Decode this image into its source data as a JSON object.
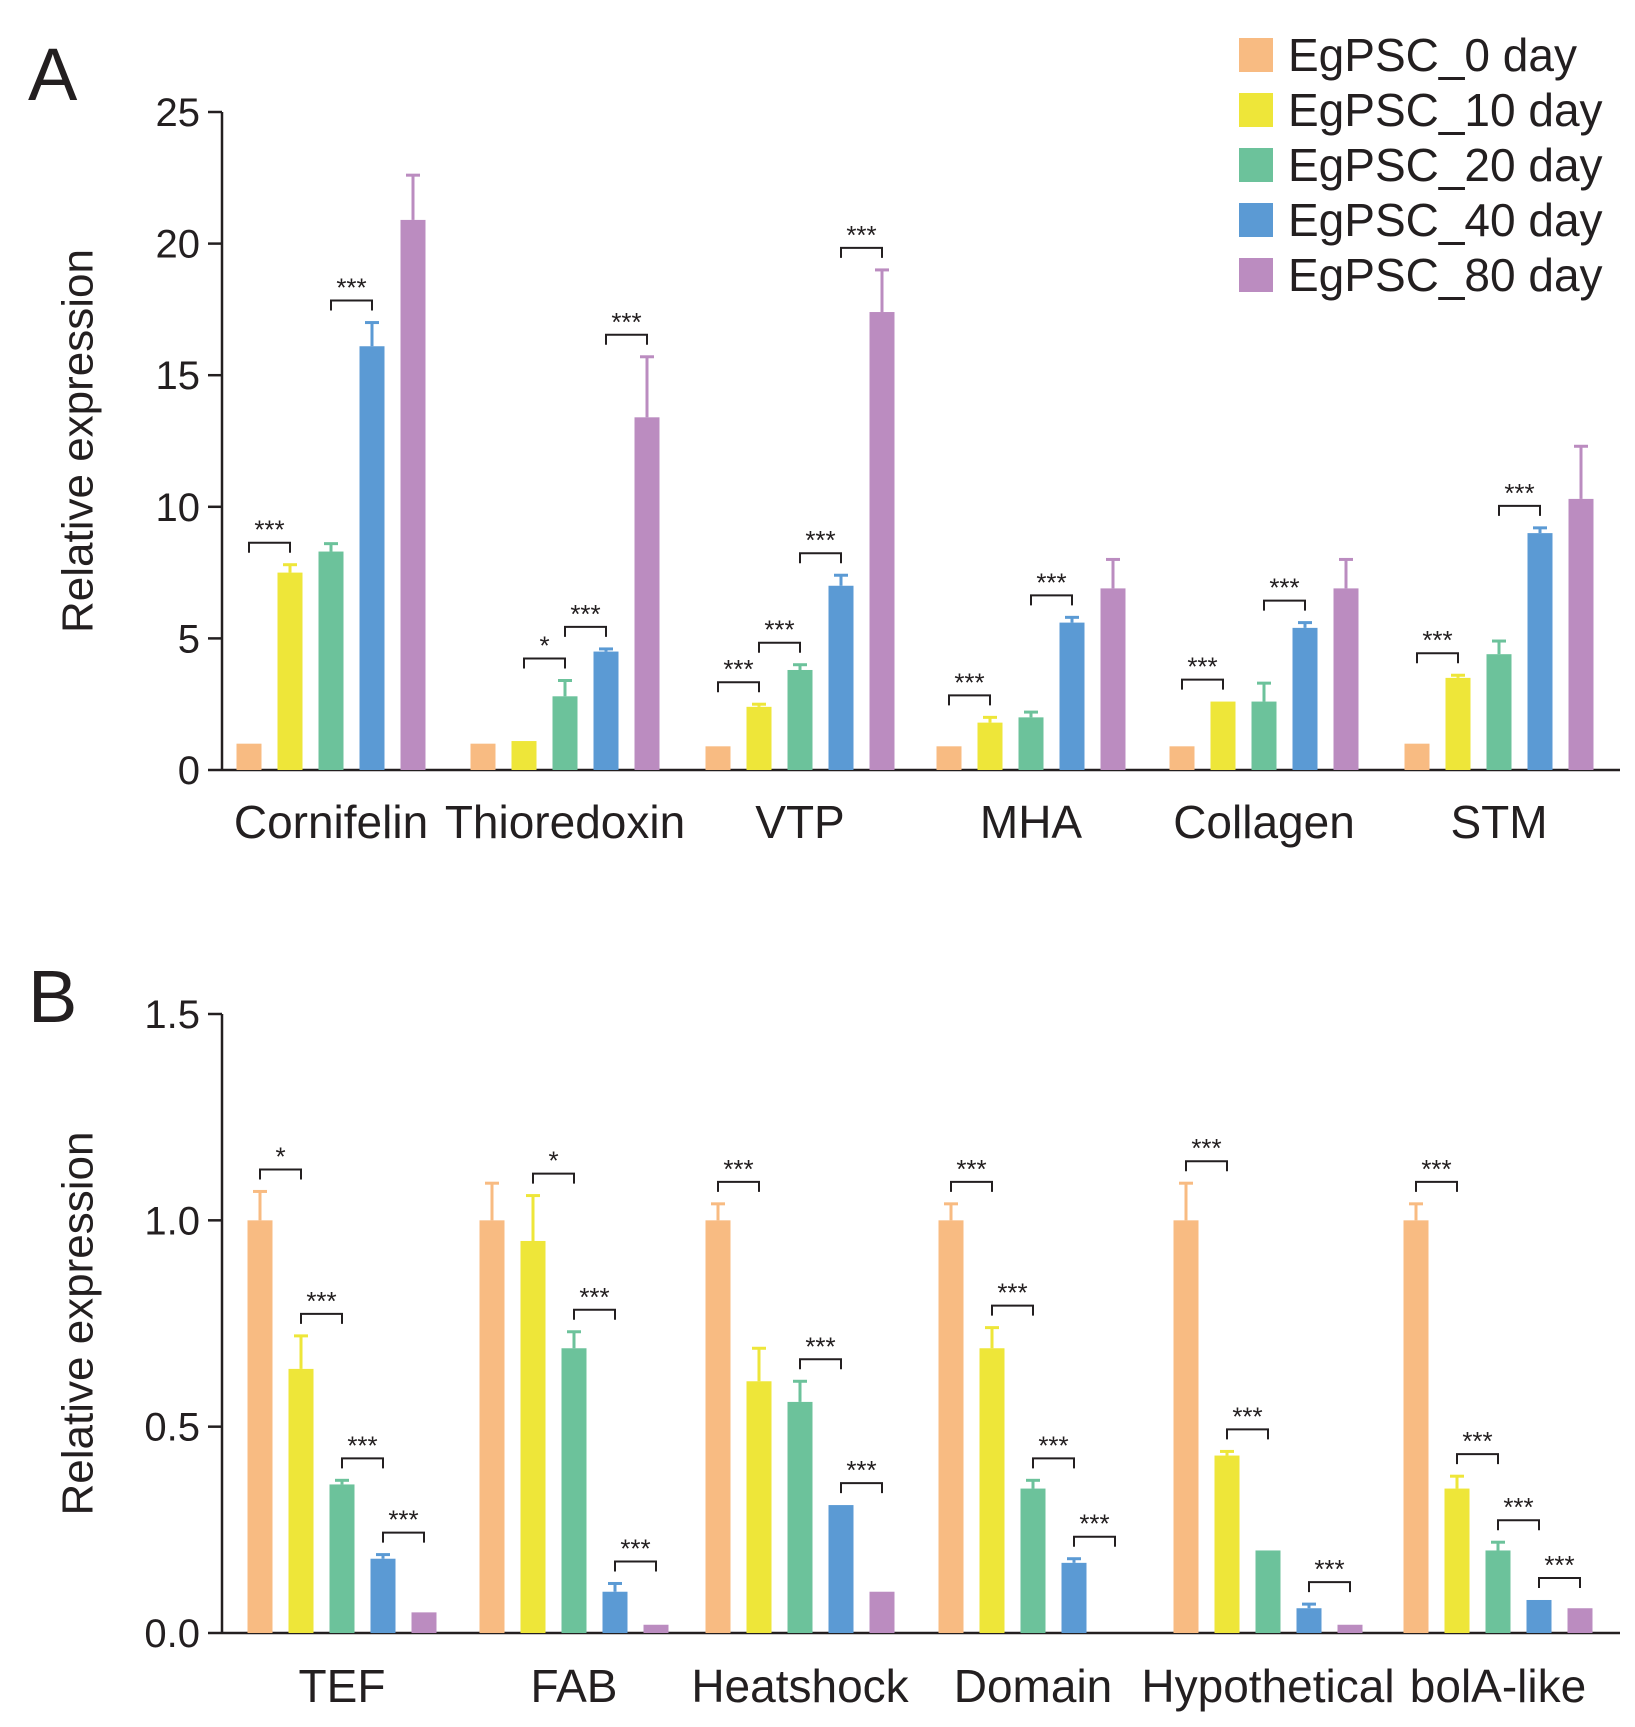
{
  "legend": {
    "items": [
      {
        "label": "EgPSC_0 day",
        "color": "#f8bb82"
      },
      {
        "label": "EgPSC_10 day",
        "color": "#eee639"
      },
      {
        "label": "EgPSC_20 day",
        "color": "#6cc29b"
      },
      {
        "label": "EgPSC_40 day",
        "color": "#5b9ad4"
      },
      {
        "label": "EgPSC_80 day",
        "color": "#bb8cc0"
      }
    ]
  },
  "chart_data": [
    {
      "panel": "A",
      "type": "bar",
      "ylabel": "Relative expression",
      "ylim": [
        0,
        25
      ],
      "yticks": [
        "0",
        "5",
        "10",
        "15",
        "20",
        "25"
      ],
      "categories": [
        "Cornifelin",
        "Thioredoxin",
        "VTP",
        "MHA",
        "Collagen",
        "STM"
      ],
      "series": [
        {
          "name": "EgPSC_0 day",
          "values": [
            1.0,
            1.0,
            0.9,
            0.9,
            0.9,
            1.0
          ],
          "errors": [
            0,
            0,
            0,
            0,
            0,
            0
          ]
        },
        {
          "name": "EgPSC_10 day",
          "values": [
            7.5,
            1.1,
            2.4,
            1.8,
            2.6,
            3.5
          ],
          "errors": [
            0.3,
            0,
            0.1,
            0.2,
            0,
            0.1
          ]
        },
        {
          "name": "EgPSC_20 day",
          "values": [
            8.3,
            2.8,
            3.8,
            2.0,
            2.6,
            4.4
          ],
          "errors": [
            0.3,
            0.6,
            0.2,
            0.2,
            0.7,
            0.5
          ]
        },
        {
          "name": "EgPSC_40 day",
          "values": [
            16.1,
            4.5,
            7.0,
            5.6,
            5.4,
            9.0
          ],
          "errors": [
            0.9,
            0.1,
            0.4,
            0.2,
            0.2,
            0.2
          ]
        },
        {
          "name": "EgPSC_80 day",
          "values": [
            20.9,
            13.4,
            17.4,
            6.9,
            6.9,
            10.3
          ],
          "errors": [
            1.7,
            2.3,
            1.6,
            1.1,
            1.1,
            2.0
          ]
        }
      ],
      "annotations": [
        {
          "category": 0,
          "from": 0,
          "to": 1,
          "text": "***"
        },
        {
          "category": 0,
          "from": 2,
          "to": 3,
          "text": "***"
        },
        {
          "category": 1,
          "from": 1,
          "to": 2,
          "text": "*"
        },
        {
          "category": 1,
          "from": 2,
          "to": 3,
          "text": "***"
        },
        {
          "category": 1,
          "from": 3,
          "to": 4,
          "text": "***"
        },
        {
          "category": 2,
          "from": 0,
          "to": 1,
          "text": "***"
        },
        {
          "category": 2,
          "from": 1,
          "to": 2,
          "text": "***"
        },
        {
          "category": 2,
          "from": 2,
          "to": 3,
          "text": "***"
        },
        {
          "category": 2,
          "from": 3,
          "to": 4,
          "text": "***"
        },
        {
          "category": 3,
          "from": 0,
          "to": 1,
          "text": "***"
        },
        {
          "category": 3,
          "from": 2,
          "to": 3,
          "text": "***"
        },
        {
          "category": 4,
          "from": 0,
          "to": 1,
          "text": "***"
        },
        {
          "category": 4,
          "from": 2,
          "to": 3,
          "text": "***"
        },
        {
          "category": 5,
          "from": 0,
          "to": 1,
          "text": "***"
        },
        {
          "category": 5,
          "from": 2,
          "to": 3,
          "text": "***"
        }
      ]
    },
    {
      "panel": "B",
      "type": "bar",
      "ylabel": "Relative expression",
      "ylim": [
        0,
        1.5
      ],
      "yticks": [
        "0.0",
        "0.5",
        "1.0",
        "1.5"
      ],
      "categories": [
        "TEF",
        "FAB",
        "Heatshock",
        "Domain",
        "Hypothetical",
        "bolA-like"
      ],
      "series": [
        {
          "name": "EgPSC_0 day",
          "values": [
            1.0,
            1.0,
            1.0,
            1.0,
            1.0,
            1.0
          ],
          "errors": [
            0.07,
            0.09,
            0.04,
            0.04,
            0.09,
            0.04
          ]
        },
        {
          "name": "EgPSC_10 day",
          "values": [
            0.64,
            0.95,
            0.61,
            0.69,
            0.43,
            0.35
          ],
          "errors": [
            0.08,
            0.11,
            0.08,
            0.05,
            0.01,
            0.03
          ]
        },
        {
          "name": "EgPSC_20 day",
          "values": [
            0.36,
            0.69,
            0.56,
            0.35,
            0.2,
            0.2
          ],
          "errors": [
            0.01,
            0.04,
            0.05,
            0.02,
            0.0,
            0.02
          ]
        },
        {
          "name": "EgPSC_40 day",
          "values": [
            0.18,
            0.1,
            0.31,
            0.17,
            0.06,
            0.08
          ],
          "errors": [
            0.01,
            0.02,
            0.0,
            0.01,
            0.01,
            0.0
          ]
        },
        {
          "name": "EgPSC_80 day",
          "values": [
            0.05,
            0.02,
            0.1,
            0.0,
            0.02,
            0.06
          ],
          "errors": [
            0,
            0,
            0,
            0,
            0,
            0
          ]
        }
      ],
      "annotations": [
        {
          "category": 0,
          "from": 0,
          "to": 1,
          "text": "*"
        },
        {
          "category": 0,
          "from": 1,
          "to": 2,
          "text": "***"
        },
        {
          "category": 0,
          "from": 2,
          "to": 3,
          "text": "***"
        },
        {
          "category": 0,
          "from": 3,
          "to": 4,
          "text": "***"
        },
        {
          "category": 1,
          "from": 1,
          "to": 2,
          "text": "*"
        },
        {
          "category": 1,
          "from": 2,
          "to": 3,
          "text": "***"
        },
        {
          "category": 1,
          "from": 3,
          "to": 4,
          "text": "***"
        },
        {
          "category": 2,
          "from": 0,
          "to": 1,
          "text": "***"
        },
        {
          "category": 2,
          "from": 2,
          "to": 3,
          "text": "***"
        },
        {
          "category": 2,
          "from": 3,
          "to": 4,
          "text": "***"
        },
        {
          "category": 3,
          "from": 0,
          "to": 1,
          "text": "***"
        },
        {
          "category": 3,
          "from": 1,
          "to": 2,
          "text": "***"
        },
        {
          "category": 3,
          "from": 2,
          "to": 3,
          "text": "***"
        },
        {
          "category": 3,
          "from": 3,
          "to": 4,
          "text": "***"
        },
        {
          "category": 4,
          "from": 0,
          "to": 1,
          "text": "***"
        },
        {
          "category": 4,
          "from": 1,
          "to": 2,
          "text": "***"
        },
        {
          "category": 4,
          "from": 3,
          "to": 4,
          "text": "***"
        },
        {
          "category": 5,
          "from": 0,
          "to": 1,
          "text": "***"
        },
        {
          "category": 5,
          "from": 1,
          "to": 2,
          "text": "***"
        },
        {
          "category": 5,
          "from": 2,
          "to": 3,
          "text": "***"
        },
        {
          "category": 5,
          "from": 3,
          "to": 4,
          "text": "***"
        }
      ]
    }
  ]
}
